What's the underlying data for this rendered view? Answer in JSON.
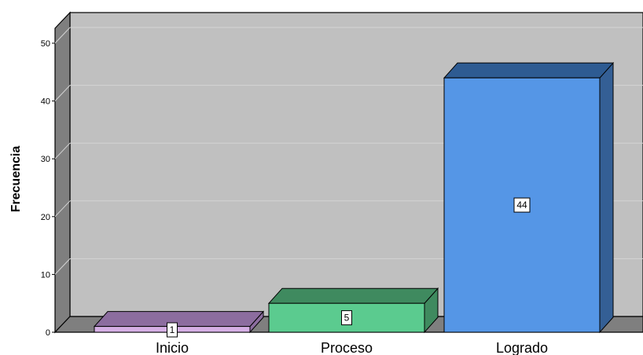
{
  "chart_data": {
    "type": "bar",
    "categories": [
      "Inicio",
      "Proceso",
      "Logrado"
    ],
    "values": [
      1,
      5,
      44
    ],
    "data_labels": [
      "1",
      "5",
      "44"
    ],
    "title": "",
    "xlabel": "",
    "ylabel": "Frecuencia",
    "ylim": [
      0,
      50
    ],
    "yticks": [
      0,
      10,
      20,
      30,
      40,
      50
    ],
    "grid": true,
    "legend": "none",
    "three_d": true
  },
  "colors": {
    "bars_front": [
      "#d6b0e6",
      "#5bcb8f",
      "#5596e6"
    ],
    "bars_top": [
      "#8c6d9f",
      "#3f8a5f",
      "#2e5b92"
    ],
    "bars_side": [
      "#8c6d9f",
      "#3f8a5f",
      "#345f95"
    ],
    "plot_background": "#c0c0c0",
    "wall_left": "#7f7f7f",
    "floor": "#7f7f7f",
    "gridline": "#d4d4d4"
  }
}
